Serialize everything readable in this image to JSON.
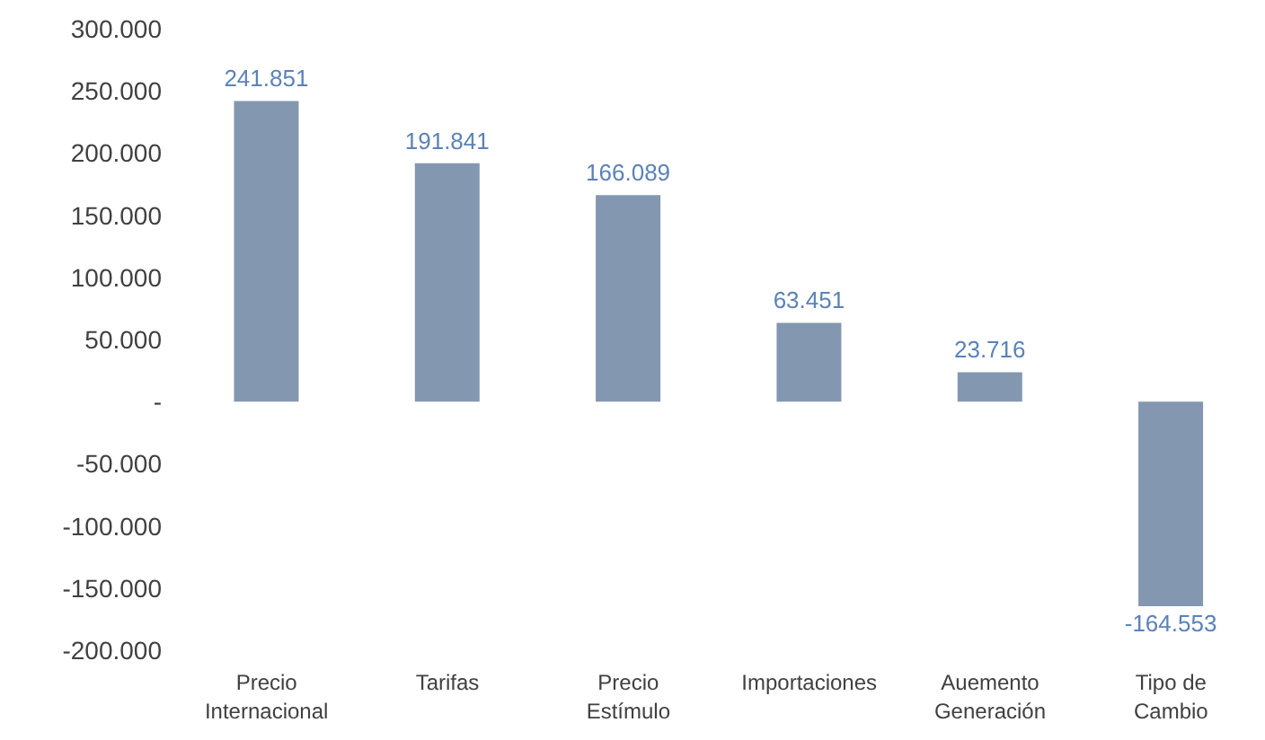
{
  "chart_data": {
    "type": "bar",
    "categories": [
      "Precio Internacional",
      "Tarifas",
      "Precio Estímulo",
      "Importaciones",
      "Auemento Generación",
      "Tipo de Cambio"
    ],
    "values": [
      241851,
      191841,
      166089,
      63451,
      23716,
      -164553
    ],
    "value_labels": [
      "241.851",
      "191.841",
      "166.089",
      "63.451",
      "23.716",
      "-164.553"
    ],
    "color": "#8497b0",
    "ylim": [
      -200000,
      300000
    ],
    "yticks": [
      {
        "value": -200000,
        "label": "-200.000"
      },
      {
        "value": -150000,
        "label": "-150.000"
      },
      {
        "value": -100000,
        "label": "-100.000"
      },
      {
        "value": -50000,
        "label": "-50.000"
      },
      {
        "value": 0,
        "label": "-"
      },
      {
        "value": 50000,
        "label": "50.000"
      },
      {
        "value": 100000,
        "label": "100.000"
      },
      {
        "value": 150000,
        "label": "150.000"
      },
      {
        "value": 200000,
        "label": "200.000"
      },
      {
        "value": 250000,
        "label": "250.000"
      },
      {
        "value": 300000,
        "label": "300.000"
      }
    ],
    "grid": false,
    "legend": false
  }
}
